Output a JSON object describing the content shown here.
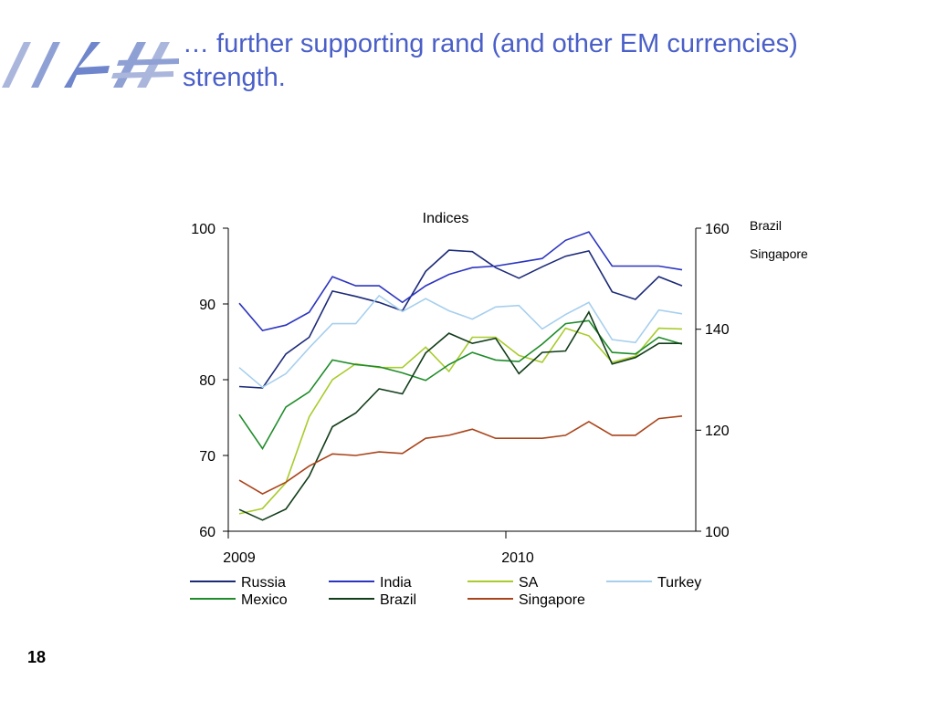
{
  "slide": {
    "title_line1": "… further supporting rand (and other EM currencies)",
    "title_line2": "strength.",
    "page_number": "18"
  },
  "colors": {
    "title": "#4a5fc8",
    "Russia": "#1c2a78",
    "India": "#2c35c0",
    "SA": "#a8cc2c",
    "Turkey": "#a6cfee",
    "Mexico": "#1f8c2a",
    "Brazil": "#123d1a",
    "Singapore": "#a9441a"
  },
  "chart_data": {
    "type": "line",
    "title": "Indices",
    "y_left": {
      "range": [
        60,
        100
      ],
      "ticks": [
        "100",
        "90",
        "80",
        "70",
        "60"
      ]
    },
    "y_right": {
      "range": [
        100,
        160
      ],
      "ticks": [
        "160",
        "140",
        "120",
        "100"
      ],
      "series_labels": [
        "Brazil",
        "Singapore"
      ]
    },
    "x_tick_labels": [
      "2009",
      "2010"
    ],
    "x_points": 21,
    "series": [
      {
        "name": "Russia",
        "axis": "left",
        "values": [
          79.1,
          78.9,
          83.4,
          85.6,
          91.7,
          91.0,
          90.2,
          89.1,
          94.3,
          97.1,
          96.9,
          94.8,
          93.4,
          94.9,
          96.3,
          97.0,
          91.6,
          90.6,
          93.6,
          92.4,
          null
        ]
      },
      {
        "name": "India",
        "axis": "left",
        "values": [
          90.1,
          86.5,
          87.2,
          88.9,
          93.6,
          92.4,
          92.4,
          90.2,
          92.4,
          93.9,
          94.8,
          95.0,
          95.5,
          96.0,
          98.4,
          99.5,
          95.0,
          95.0,
          95.0,
          94.5,
          null
        ]
      },
      {
        "name": "SA",
        "axis": "left",
        "values": [
          62.3,
          63.0,
          66.4,
          75.1,
          80.0,
          82.1,
          81.6,
          81.6,
          84.3,
          81.1,
          85.6,
          85.6,
          83.2,
          82.3,
          86.8,
          85.8,
          82.3,
          83.1,
          86.8,
          86.7,
          null
        ]
      },
      {
        "name": "Turkey",
        "axis": "left",
        "values": [
          81.6,
          79.0,
          80.8,
          84.2,
          87.4,
          87.4,
          91.1,
          89.0,
          90.7,
          89.1,
          88.0,
          89.6,
          89.8,
          86.7,
          88.6,
          90.2,
          85.3,
          84.9,
          89.2,
          88.7,
          null
        ]
      },
      {
        "name": "Mexico",
        "axis": "left",
        "values": [
          75.4,
          70.9,
          76.4,
          78.4,
          82.6,
          82.0,
          81.7,
          80.9,
          79.9,
          82.0,
          83.6,
          82.6,
          82.4,
          84.7,
          87.4,
          87.8,
          83.6,
          83.4,
          85.6,
          84.7,
          null
        ]
      },
      {
        "name": "Brazil",
        "axis": "right",
        "values": [
          104.3,
          102.2,
          104.4,
          110.9,
          120.7,
          123.4,
          128.2,
          127.2,
          135.3,
          139.2,
          137.2,
          138.2,
          131.2,
          135.4,
          135.7,
          143.4,
          133.1,
          134.4,
          137.2,
          137.2,
          null
        ]
      },
      {
        "name": "Singapore",
        "axis": "right",
        "values": [
          110.1,
          107.4,
          109.7,
          112.9,
          115.3,
          115.0,
          115.7,
          115.4,
          118.4,
          119.0,
          120.2,
          118.4,
          118.4,
          118.4,
          119.0,
          121.7,
          119.0,
          119.0,
          122.3,
          122.8,
          null
        ]
      }
    ],
    "legend": {
      "placement": "bottom"
    },
    "grid": false
  }
}
